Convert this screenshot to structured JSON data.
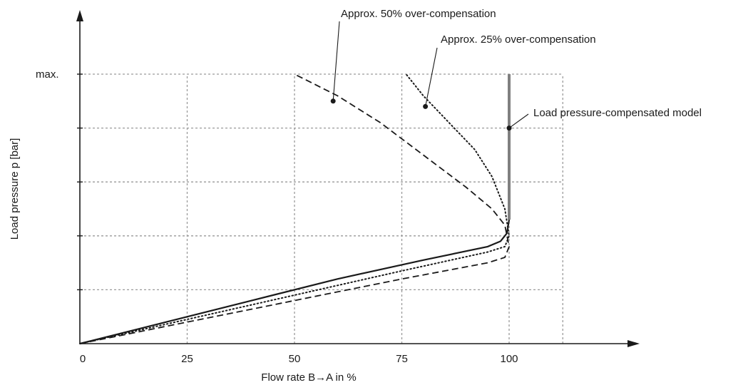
{
  "chart_data": {
    "type": "line",
    "title": "",
    "xlabel": "Flow rate B→A in %",
    "ylabel": "Load pressure p [bar]",
    "xlim": [
      0,
      130
    ],
    "ylim": [
      0,
      5.8
    ],
    "grid": true,
    "x_ticks": [
      0,
      25,
      50,
      75,
      100
    ],
    "x_tick_labels": [
      "0",
      "25",
      "50",
      "75",
      "100"
    ],
    "y_ticks": [
      5
    ],
    "y_tick_labels": [
      "max."
    ],
    "series": [
      {
        "name": "Load pressure-compensated model",
        "style": "solid",
        "x": [
          0,
          20,
          40,
          60,
          80,
          95,
          98,
          99.5,
          100,
          100,
          100
        ],
        "y": [
          0,
          0.4,
          0.8,
          1.2,
          1.55,
          1.8,
          1.9,
          2.05,
          2.3,
          4,
          5
        ]
      },
      {
        "name": "Approx. 25% over-compensation",
        "style": "dotted",
        "x": [
          0,
          25,
          50,
          75,
          95,
          99,
          100,
          99,
          96,
          92,
          86,
          80,
          76
        ],
        "y": [
          0,
          0.45,
          0.9,
          1.35,
          1.7,
          1.8,
          2.0,
          2.5,
          3.1,
          3.6,
          4.1,
          4.6,
          5
        ]
      },
      {
        "name": "Approx. 50% over-compensation",
        "style": "dashed",
        "x": [
          0,
          25,
          50,
          75,
          95,
          99,
          100,
          99,
          96,
          90,
          80,
          70,
          60,
          50
        ],
        "y": [
          0,
          0.4,
          0.8,
          1.2,
          1.5,
          1.6,
          1.8,
          2.2,
          2.5,
          2.9,
          3.5,
          4.1,
          4.6,
          5
        ]
      }
    ],
    "annotations": [
      {
        "text": "Approx. 50% over-compensation",
        "x": 59,
        "y": 4.5
      },
      {
        "text": "Approx. 25% over-compensation",
        "x": 80.5,
        "y": 4.4
      },
      {
        "text": "Load pressure-compensated model",
        "x": 100,
        "y": 4
      }
    ],
    "colors": {
      "line": "#1a1a1a",
      "pressure_compensated": "#808080",
      "grid": "#9a9a9a"
    }
  }
}
